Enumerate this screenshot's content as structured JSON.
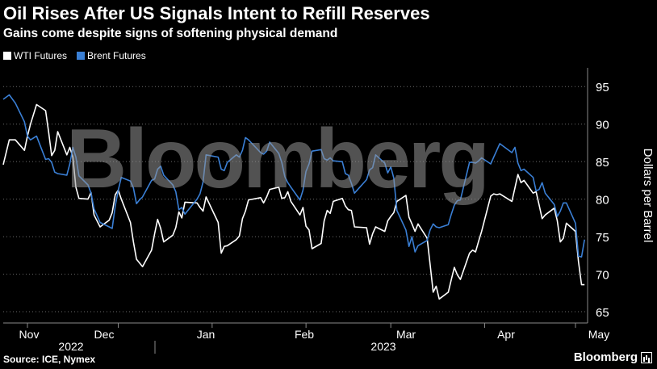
{
  "chart_data": {
    "type": "line",
    "title": "Oil Rises After US Signals Intent to Refill Reserves",
    "subtitle": "Gains come despite signs of softening physical demand",
    "ylabel": "Dollars per Barrel",
    "ylim": [
      63.5,
      97.5
    ],
    "yticks": [
      65,
      70,
      75,
      80,
      85,
      90,
      95
    ],
    "x_month_labels": [
      "Nov",
      "Dec",
      "Jan",
      "Feb",
      "Mar",
      "Apr",
      "May"
    ],
    "x_year_labels": [
      "2022",
      "2023"
    ],
    "x_range": [
      "2022-10-24",
      "2023-05-05"
    ],
    "legend_position": "top-left",
    "grid": "horizontal-dotted",
    "series": [
      {
        "name": "WTI Futures",
        "color": "#ffffff",
        "points": [
          [
            "2022-10-24",
            84.6
          ],
          [
            "2022-10-26",
            87.9
          ],
          [
            "2022-10-28",
            87.9
          ],
          [
            "2022-10-31",
            86.5
          ],
          [
            "2022-11-01",
            88.4
          ],
          [
            "2022-11-02",
            90.0
          ],
          [
            "2022-11-04",
            92.6
          ],
          [
            "2022-11-07",
            91.8
          ],
          [
            "2022-11-08",
            88.9
          ],
          [
            "2022-11-09",
            85.8
          ],
          [
            "2022-11-10",
            86.5
          ],
          [
            "2022-11-11",
            89.0
          ],
          [
            "2022-11-14",
            85.9
          ],
          [
            "2022-11-15",
            86.9
          ],
          [
            "2022-11-16",
            85.6
          ],
          [
            "2022-11-17",
            81.6
          ],
          [
            "2022-11-18",
            80.1
          ],
          [
            "2022-11-21",
            80.0
          ],
          [
            "2022-11-22",
            80.9
          ],
          [
            "2022-11-23",
            77.9
          ],
          [
            "2022-11-25",
            76.3
          ],
          [
            "2022-11-28",
            77.2
          ],
          [
            "2022-11-29",
            78.2
          ],
          [
            "2022-11-30",
            80.6
          ],
          [
            "2022-12-01",
            81.2
          ],
          [
            "2022-12-02",
            80.0
          ],
          [
            "2022-12-05",
            76.9
          ],
          [
            "2022-12-06",
            74.3
          ],
          [
            "2022-12-07",
            72.0
          ],
          [
            "2022-12-08",
            71.5
          ],
          [
            "2022-12-09",
            71.0
          ],
          [
            "2022-12-12",
            73.2
          ],
          [
            "2022-12-13",
            75.4
          ],
          [
            "2022-12-14",
            77.3
          ],
          [
            "2022-12-15",
            76.1
          ],
          [
            "2022-12-16",
            74.3
          ],
          [
            "2022-12-19",
            75.2
          ],
          [
            "2022-12-20",
            76.2
          ],
          [
            "2022-12-21",
            78.3
          ],
          [
            "2022-12-22",
            77.5
          ],
          [
            "2022-12-23",
            79.6
          ],
          [
            "2022-12-27",
            79.5
          ],
          [
            "2022-12-28",
            78.9
          ],
          [
            "2022-12-29",
            78.4
          ],
          [
            "2022-12-30",
            80.3
          ],
          [
            "2023-01-03",
            76.9
          ],
          [
            "2023-01-04",
            72.8
          ],
          [
            "2023-01-05",
            73.7
          ],
          [
            "2023-01-06",
            73.8
          ],
          [
            "2023-01-09",
            74.6
          ],
          [
            "2023-01-10",
            75.1
          ],
          [
            "2023-01-11",
            77.4
          ],
          [
            "2023-01-12",
            78.4
          ],
          [
            "2023-01-13",
            79.9
          ],
          [
            "2023-01-17",
            80.2
          ],
          [
            "2023-01-18",
            79.5
          ],
          [
            "2023-01-19",
            80.3
          ],
          [
            "2023-01-20",
            81.3
          ],
          [
            "2023-01-23",
            81.6
          ],
          [
            "2023-01-24",
            80.1
          ],
          [
            "2023-01-25",
            80.2
          ],
          [
            "2023-01-26",
            81.0
          ],
          [
            "2023-01-27",
            79.7
          ],
          [
            "2023-01-30",
            77.9
          ],
          [
            "2023-01-31",
            78.9
          ],
          [
            "2023-02-01",
            76.4
          ],
          [
            "2023-02-02",
            75.9
          ],
          [
            "2023-02-03",
            73.4
          ],
          [
            "2023-02-06",
            74.1
          ],
          [
            "2023-02-07",
            77.1
          ],
          [
            "2023-02-08",
            78.5
          ],
          [
            "2023-02-09",
            78.1
          ],
          [
            "2023-02-10",
            79.7
          ],
          [
            "2023-02-13",
            80.1
          ],
          [
            "2023-02-14",
            79.1
          ],
          [
            "2023-02-15",
            78.6
          ],
          [
            "2023-02-16",
            78.5
          ],
          [
            "2023-02-17",
            76.3
          ],
          [
            "2023-02-21",
            76.2
          ],
          [
            "2023-02-22",
            74.0
          ],
          [
            "2023-02-23",
            75.4
          ],
          [
            "2023-02-24",
            76.3
          ],
          [
            "2023-02-27",
            75.7
          ],
          [
            "2023-02-28",
            77.1
          ],
          [
            "2023-03-01",
            77.7
          ],
          [
            "2023-03-02",
            78.2
          ],
          [
            "2023-03-03",
            79.7
          ],
          [
            "2023-03-06",
            80.5
          ],
          [
            "2023-03-07",
            77.6
          ],
          [
            "2023-03-08",
            76.7
          ],
          [
            "2023-03-09",
            75.7
          ],
          [
            "2023-03-10",
            76.7
          ],
          [
            "2023-03-13",
            74.8
          ],
          [
            "2023-03-14",
            71.3
          ],
          [
            "2023-03-15",
            67.6
          ],
          [
            "2023-03-16",
            68.4
          ],
          [
            "2023-03-17",
            66.7
          ],
          [
            "2023-03-20",
            67.6
          ],
          [
            "2023-03-21",
            69.3
          ],
          [
            "2023-03-22",
            70.9
          ],
          [
            "2023-03-23",
            69.9
          ],
          [
            "2023-03-24",
            69.3
          ],
          [
            "2023-03-27",
            72.8
          ],
          [
            "2023-03-28",
            73.2
          ],
          [
            "2023-03-29",
            72.97
          ],
          [
            "2023-03-30",
            74.4
          ],
          [
            "2023-03-31",
            75.7
          ],
          [
            "2023-04-03",
            80.4
          ],
          [
            "2023-04-04",
            80.7
          ],
          [
            "2023-04-05",
            80.6
          ],
          [
            "2023-04-06",
            80.7
          ],
          [
            "2023-04-10",
            79.7
          ],
          [
            "2023-04-11",
            81.5
          ],
          [
            "2023-04-12",
            83.3
          ],
          [
            "2023-04-13",
            82.2
          ],
          [
            "2023-04-14",
            82.5
          ],
          [
            "2023-04-17",
            80.8
          ],
          [
            "2023-04-18",
            81.0
          ],
          [
            "2023-04-19",
            79.2
          ],
          [
            "2023-04-20",
            77.4
          ],
          [
            "2023-04-21",
            77.9
          ],
          [
            "2023-04-24",
            78.8
          ],
          [
            "2023-04-25",
            77.1
          ],
          [
            "2023-04-26",
            74.3
          ],
          [
            "2023-04-27",
            74.8
          ],
          [
            "2023-04-28",
            76.8
          ],
          [
            "2023-05-01",
            75.7
          ],
          [
            "2023-05-02",
            71.7
          ],
          [
            "2023-05-03",
            68.6
          ],
          [
            "2023-05-04",
            68.6
          ]
        ]
      },
      {
        "name": "Brent Futures",
        "color": "#3a7fd5",
        "points": [
          [
            "2022-10-24",
            93.3
          ],
          [
            "2022-10-26",
            93.9
          ],
          [
            "2022-10-28",
            92.8
          ],
          [
            "2022-10-31",
            90.3
          ],
          [
            "2022-11-01",
            88.4
          ],
          [
            "2022-11-02",
            87.9
          ],
          [
            "2022-11-04",
            88.4
          ],
          [
            "2022-11-07",
            85.3
          ],
          [
            "2022-11-08",
            85.4
          ],
          [
            "2022-11-09",
            84.9
          ],
          [
            "2022-11-10",
            83.6
          ],
          [
            "2022-11-11",
            83.4
          ],
          [
            "2022-11-14",
            83.2
          ],
          [
            "2022-11-15",
            84.7
          ],
          [
            "2022-11-16",
            86.9
          ],
          [
            "2022-11-17",
            85.6
          ],
          [
            "2022-11-18",
            83.1
          ],
          [
            "2022-11-21",
            81.9
          ],
          [
            "2022-11-22",
            80.8
          ],
          [
            "2022-11-23",
            78.7
          ],
          [
            "2022-11-25",
            76.9
          ],
          [
            "2022-11-28",
            76.3
          ],
          [
            "2022-11-29",
            76.1
          ],
          [
            "2022-11-30",
            79.1
          ],
          [
            "2022-12-01",
            81.2
          ],
          [
            "2022-12-02",
            82.9
          ],
          [
            "2022-12-05",
            82.4
          ],
          [
            "2022-12-06",
            81.5
          ],
          [
            "2022-12-07",
            79.4
          ],
          [
            "2022-12-08",
            79.9
          ],
          [
            "2022-12-09",
            80.3
          ],
          [
            "2022-12-12",
            82.5
          ],
          [
            "2022-12-13",
            82.7
          ],
          [
            "2022-12-14",
            84.0
          ],
          [
            "2022-12-15",
            84.4
          ],
          [
            "2022-12-16",
            83.2
          ],
          [
            "2022-12-19",
            81.9
          ],
          [
            "2022-12-20",
            81.0
          ],
          [
            "2022-12-21",
            78.6
          ],
          [
            "2022-12-22",
            78.9
          ],
          [
            "2022-12-23",
            78.0
          ],
          [
            "2022-12-27",
            80.0
          ],
          [
            "2022-12-28",
            80.7
          ],
          [
            "2022-12-29",
            82.3
          ],
          [
            "2022-12-30",
            85.9
          ],
          [
            "2023-01-03",
            85.6
          ],
          [
            "2023-01-04",
            84.0
          ],
          [
            "2023-01-05",
            83.8
          ],
          [
            "2023-01-06",
            84.9
          ],
          [
            "2023-01-09",
            85.9
          ],
          [
            "2023-01-10",
            85.6
          ],
          [
            "2023-01-11",
            86.5
          ],
          [
            "2023-01-12",
            88.2
          ],
          [
            "2023-01-13",
            87.9
          ],
          [
            "2023-01-17",
            86.2
          ],
          [
            "2023-01-18",
            86.0
          ],
          [
            "2023-01-19",
            86.4
          ],
          [
            "2023-01-20",
            87.6
          ],
          [
            "2023-01-23",
            86.1
          ],
          [
            "2023-01-24",
            84.9
          ],
          [
            "2023-01-25",
            83.0
          ],
          [
            "2023-01-26",
            82.2
          ],
          [
            "2023-01-27",
            81.6
          ],
          [
            "2023-01-30",
            79.9
          ],
          [
            "2023-01-31",
            81.2
          ],
          [
            "2023-02-01",
            83.7
          ],
          [
            "2023-02-02",
            84.7
          ],
          [
            "2023-02-03",
            86.4
          ],
          [
            "2023-02-06",
            86.6
          ],
          [
            "2023-02-07",
            85.4
          ],
          [
            "2023-02-08",
            85.2
          ],
          [
            "2023-02-09",
            85.5
          ],
          [
            "2023-02-10",
            85.1
          ],
          [
            "2023-02-13",
            85.0
          ],
          [
            "2023-02-14",
            83.4
          ],
          [
            "2023-02-15",
            83.2
          ],
          [
            "2023-02-16",
            82.1
          ],
          [
            "2023-02-17",
            80.8
          ],
          [
            "2023-02-21",
            82.6
          ],
          [
            "2023-02-22",
            83.9
          ],
          [
            "2023-02-23",
            84.2
          ],
          [
            "2023-02-24",
            85.9
          ],
          [
            "2023-02-27",
            84.8
          ],
          [
            "2023-02-28",
            83.5
          ],
          [
            "2023-03-01",
            84.3
          ],
          [
            "2023-03-02",
            82.8
          ],
          [
            "2023-03-03",
            78.5
          ],
          [
            "2023-03-06",
            75.9
          ],
          [
            "2023-03-07",
            73.7
          ],
          [
            "2023-03-08",
            75.0
          ],
          [
            "2023-03-09",
            72.97
          ],
          [
            "2023-03-10",
            73.8
          ],
          [
            "2023-03-13",
            74.5
          ],
          [
            "2023-03-14",
            75.9
          ],
          [
            "2023-03-15",
            76.7
          ],
          [
            "2023-03-16",
            76.3
          ],
          [
            "2023-03-17",
            76.2
          ],
          [
            "2023-03-20",
            76.6
          ],
          [
            "2023-03-21",
            78.0
          ],
          [
            "2023-03-22",
            79.2
          ],
          [
            "2023-03-23",
            79.8
          ],
          [
            "2023-03-24",
            79.9
          ],
          [
            "2023-03-27",
            84.9
          ],
          [
            "2023-03-28",
            84.9
          ],
          [
            "2023-03-29",
            84.8
          ],
          [
            "2023-03-30",
            85.1
          ],
          [
            "2023-03-31",
            85.5
          ],
          [
            "2023-04-03",
            84.7
          ],
          [
            "2023-04-04",
            85.6
          ],
          [
            "2023-04-05",
            86.5
          ],
          [
            "2023-04-06",
            87.4
          ],
          [
            "2023-04-10",
            86.2
          ],
          [
            "2023-04-11",
            86.9
          ],
          [
            "2023-04-12",
            84.8
          ],
          [
            "2023-04-13",
            83.8
          ],
          [
            "2023-04-14",
            84.0
          ],
          [
            "2023-04-17",
            82.9
          ],
          [
            "2023-04-18",
            81.1
          ],
          [
            "2023-04-19",
            81.3
          ],
          [
            "2023-04-20",
            82.2
          ],
          [
            "2023-04-21",
            80.8
          ],
          [
            "2023-04-24",
            79.3
          ],
          [
            "2023-04-25",
            77.7
          ],
          [
            "2023-04-26",
            78.4
          ],
          [
            "2023-04-27",
            79.5
          ],
          [
            "2023-04-28",
            79.5
          ],
          [
            "2023-05-01",
            76.8
          ],
          [
            "2023-05-02",
            72.4
          ],
          [
            "2023-05-03",
            72.3
          ],
          [
            "2023-05-04",
            74.6
          ]
        ]
      }
    ]
  },
  "source": "Source: ICE, Nymex",
  "brand": "Bloomberg",
  "watermark": "Bloomberg",
  "colors": {
    "background": "#000000",
    "grid": "#6a6a6a",
    "axis": "#8a8a8a"
  }
}
